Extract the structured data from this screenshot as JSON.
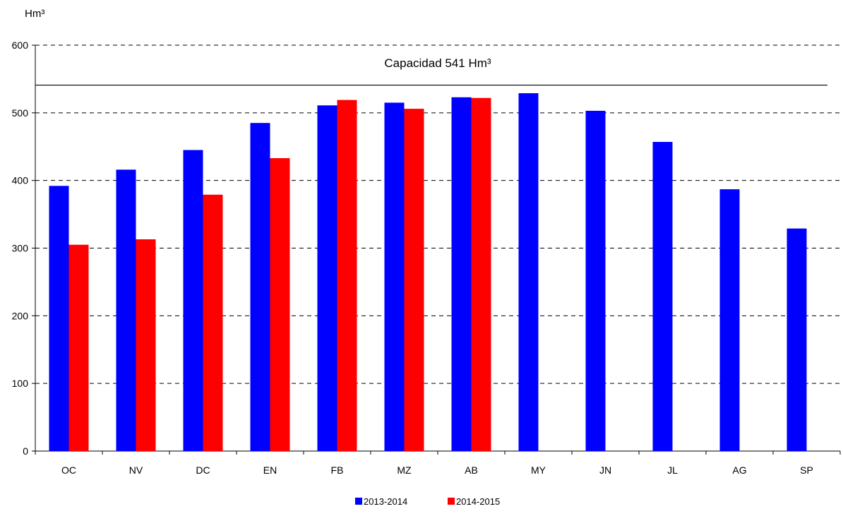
{
  "chart_data": {
    "type": "bar",
    "ylabel": "Hm³",
    "categories": [
      "OC",
      "NV",
      "DC",
      "EN",
      "FB",
      "MZ",
      "AB",
      "MY",
      "JN",
      "JL",
      "AG",
      "SP"
    ],
    "series": [
      {
        "name": "2013-2014",
        "color": "#0000ff",
        "values": [
          392,
          416,
          445,
          485,
          511,
          515,
          523,
          529,
          503,
          457,
          387,
          329
        ]
      },
      {
        "name": "2014-2015",
        "color": "#ff0000",
        "values": [
          305,
          313,
          379,
          433,
          519,
          506,
          522,
          null,
          null,
          null,
          null,
          null
        ]
      }
    ],
    "ylim": [
      0,
      600
    ],
    "yticks": [
      0,
      100,
      200,
      300,
      400,
      500,
      600
    ],
    "grid": true,
    "grid_style": "dashed",
    "legend_position": "bottom-center",
    "reference_line": {
      "value": 541,
      "label": "Capacidad 541 Hm³"
    }
  }
}
